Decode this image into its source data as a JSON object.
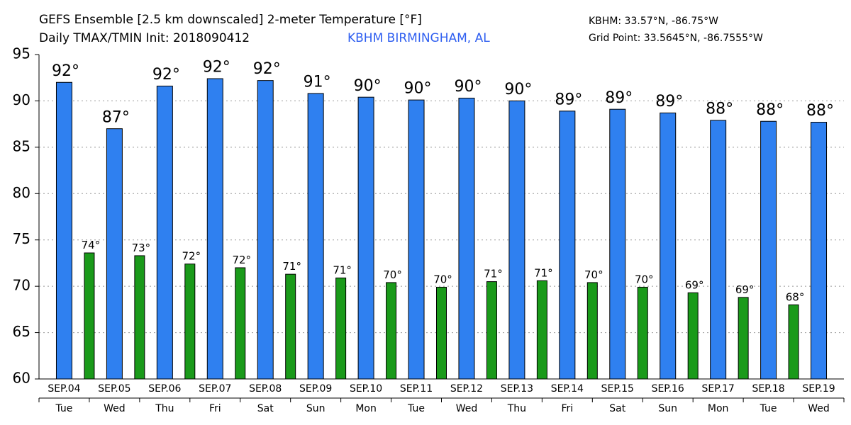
{
  "chart_data": {
    "type": "bar",
    "title": "GEFS Ensemble [2.5 km downscaled] 2-meter Temperature [°F]",
    "subtitle": "Daily TMAX/TMIN Init: 2018090412",
    "location": "KBHM BIRMINGHAM, AL",
    "station_coords": "KBHM: 33.57°N, -86.75°W",
    "grid_point": "Grid Point: 33.5645°N, -86.7555°W",
    "categories": [
      "SEP.04",
      "SEP.05",
      "SEP.06",
      "SEP.07",
      "SEP.08",
      "SEP.09",
      "SEP.10",
      "SEP.11",
      "SEP.12",
      "SEP.13",
      "SEP.14",
      "SEP.15",
      "SEP.16",
      "SEP.17",
      "SEP.18",
      "SEP.19"
    ],
    "weekdays": [
      "Tue",
      "Wed",
      "Thu",
      "Fri",
      "Sat",
      "Sun",
      "Mon",
      "Tue",
      "Wed",
      "Thu",
      "Fri",
      "Sat",
      "Sun",
      "Mon",
      "Tue",
      "Wed"
    ],
    "series": [
      {
        "color": "#2f80f0",
        "values": [
          92.0,
          87.0,
          91.6,
          92.4,
          92.2,
          90.8,
          90.4,
          90.1,
          90.3,
          90.0,
          88.9,
          89.1,
          88.7,
          87.9,
          87.8,
          87.7
        ],
        "value_labels": [
          "92°",
          "87°",
          "92°",
          "92°",
          "92°",
          "91°",
          "90°",
          "90°",
          "90°",
          "90°",
          "89°",
          "89°",
          "89°",
          "88°",
          "88°",
          "88°"
        ]
      },
      {
        "color": "#1a9a1a",
        "values": [
          73.6,
          73.3,
          72.4,
          72.0,
          71.3,
          70.9,
          70.4,
          69.9,
          70.5,
          70.6,
          70.4,
          69.9,
          69.3,
          68.8,
          68.0,
          null
        ],
        "value_labels": [
          "74°",
          "73°",
          "72°",
          "72°",
          "71°",
          "71°",
          "70°",
          "70°",
          "71°",
          "71°",
          "70°",
          "70°",
          "69°",
          "69°",
          "68°",
          null
        ]
      }
    ],
    "ylim": [
      60,
      95
    ],
    "yticks": [
      60,
      65,
      70,
      75,
      80,
      85,
      90,
      95
    ],
    "grid": true
  }
}
